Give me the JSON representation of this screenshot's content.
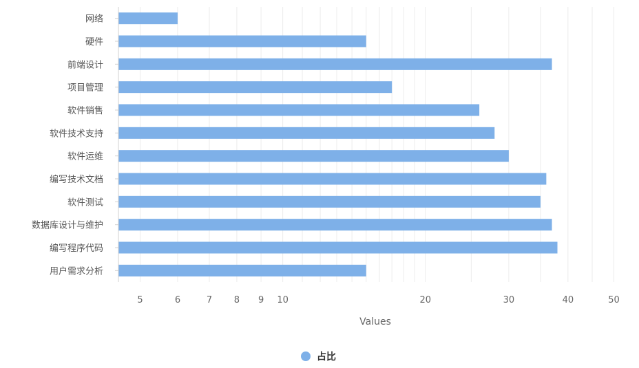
{
  "chart_data": {
    "type": "bar",
    "orientation": "horizontal",
    "x_scale": "log",
    "categories": [
      "网络",
      "硬件",
      "前端设计",
      "项目管理",
      "软件销售",
      "软件技术支持",
      "软件运维",
      "编写技术文档",
      "软件测试",
      "数据库设计与维护",
      "编写程序代码",
      "用户需求分析"
    ],
    "series": [
      {
        "name": "占比",
        "color": "#7eb0e8",
        "values": [
          6,
          15,
          37,
          17,
          26,
          28,
          30,
          36,
          35,
          37,
          38,
          15
        ]
      }
    ],
    "xlabel": "Values",
    "ylabel": "",
    "xlim": [
      4.5,
      55
    ],
    "x_ticks": [
      5,
      6,
      7,
      8,
      9,
      10,
      20,
      30,
      40,
      50
    ],
    "grid": true,
    "legend_position": "bottom-center"
  }
}
